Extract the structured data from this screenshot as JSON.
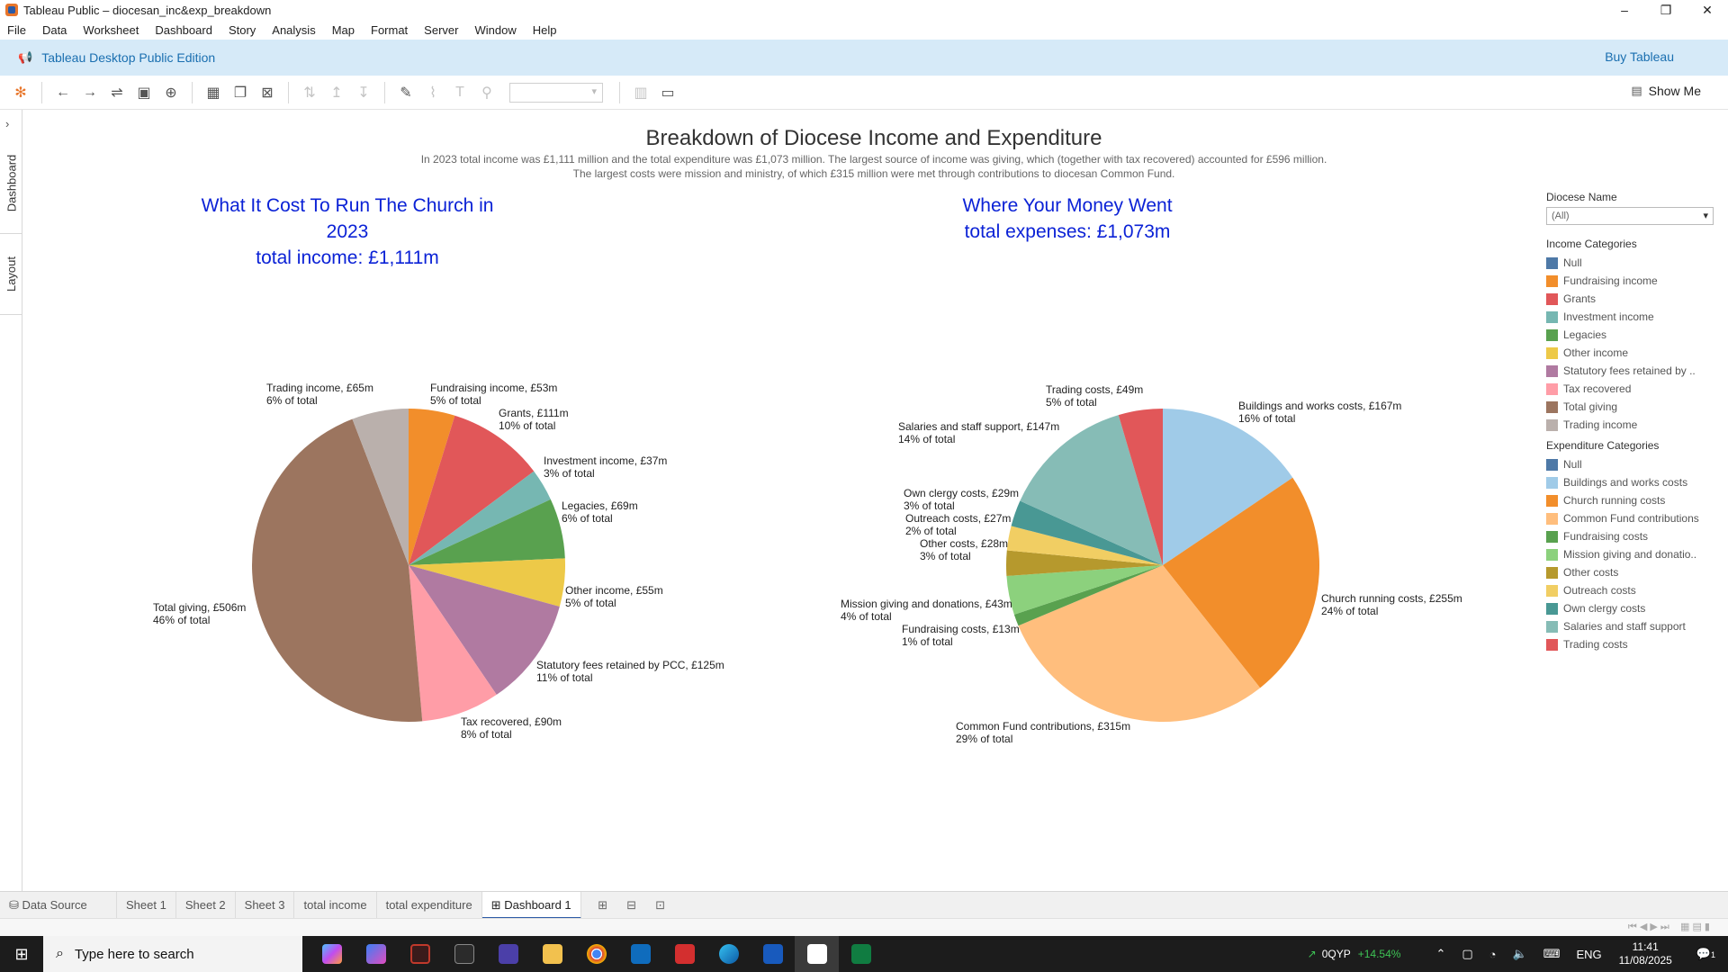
{
  "window": {
    "title": "Tableau Public – diocesan_inc&exp_breakdown",
    "controls": [
      "–",
      "❐",
      "✕"
    ]
  },
  "menu": [
    "File",
    "Data",
    "Worksheet",
    "Dashboard",
    "Story",
    "Analysis",
    "Map",
    "Format",
    "Server",
    "Window",
    "Help"
  ],
  "banner": {
    "edition": "Tableau Desktop Public Edition",
    "buy": "Buy Tableau"
  },
  "toolbar": {
    "show_me": "Show Me"
  },
  "side_tabs": [
    "Dashboard",
    "Layout"
  ],
  "dashboard": {
    "title": "Breakdown of Diocese Income and Expenditure",
    "subtitle_line1": "In 2023 total income was £1,111 million and the total expenditure was £1,073 million. The largest source of income was giving, which (together with tax recovered) accounted for £596 million.",
    "subtitle_line2": "The largest costs were mission and ministry, of which £315 million were met through contributions to diocesan Common Fund.",
    "left_title_1": "What It Cost To Run The Church in 2023",
    "left_title_2": "total income: £1,111m",
    "right_title_1": "Where Your Money Went",
    "right_title_2": "total expenses: £1,073m"
  },
  "chart_data": [
    {
      "type": "pie",
      "title": "What It Cost To Run The Church in 2023",
      "labels": [
        "Fundraising income",
        "Grants",
        "Investment income",
        "Legacies",
        "Other income",
        "Statutory fees retained by PCC",
        "Tax recovered",
        "Total giving",
        "Trading income"
      ],
      "values": [
        53,
        111,
        37,
        69,
        55,
        125,
        90,
        506,
        65
      ],
      "colors": [
        "#f28e2b",
        "#e15759",
        "#76b7b2",
        "#59a14f",
        "#edc948",
        "#b07aa1",
        "#ff9da7",
        "#9c755f",
        "#bab0ac"
      ],
      "label_line1": [
        "Fundraising income, £53m",
        "Grants, £111m",
        "Investment income, £37m",
        "Legacies, £69m",
        "Other income, £55m",
        "Statutory fees retained by PCC, £125m",
        "Tax recovered, £90m",
        "Total giving, £506m",
        "Trading income, £65m"
      ],
      "label_line2": [
        "5% of total",
        "10% of total",
        "3% of total",
        "6% of total",
        "5% of total",
        "11% of total",
        "8% of total",
        "46% of total",
        "6% of total"
      ]
    },
    {
      "type": "pie",
      "title": "Where Your Money Went",
      "labels": [
        "Buildings and works costs",
        "Church running costs",
        "Common Fund contributions",
        "Fundraising costs",
        "Mission giving and donations",
        "Other costs",
        "Outreach costs",
        "Own clergy costs",
        "Salaries and staff  support",
        "Trading costs"
      ],
      "values": [
        167,
        255,
        315,
        13,
        43,
        28,
        27,
        29,
        147,
        49
      ],
      "colors": [
        "#a0cbe8",
        "#f28e2b",
        "#ffbe7d",
        "#59a14f",
        "#8cd17d",
        "#b6992d",
        "#f1ce63",
        "#499894",
        "#86bcb6",
        "#e15759"
      ],
      "label_line1": [
        "Buildings and works costs, £167m",
        "Church running costs, £255m",
        "Common Fund contributions, £315m",
        "Fundraising costs, £13m",
        "Mission giving and donations, £43m",
        "Other costs, £28m",
        "Outreach costs, £27m",
        "Own clergy costs, £29m",
        "Salaries and staff  support, £147m",
        "Trading costs, £49m"
      ],
      "label_line2": [
        "16% of total",
        "24% of total",
        "29% of total",
        "1% of total",
        "4% of total",
        "3% of total",
        "2% of total",
        "3% of total",
        "14% of total",
        "5% of total"
      ]
    }
  ],
  "legend": {
    "filter_title": "Diocese Name",
    "filter_value": "(All)",
    "income_title": "Income Categories",
    "income": [
      {
        "label": "Null",
        "color": "#4e79a7"
      },
      {
        "label": "Fundraising income",
        "color": "#f28e2b"
      },
      {
        "label": "Grants",
        "color": "#e15759"
      },
      {
        "label": "Investment income",
        "color": "#76b7b2"
      },
      {
        "label": "Legacies",
        "color": "#59a14f"
      },
      {
        "label": "Other income",
        "color": "#edc948"
      },
      {
        "label": "Statutory fees retained by ..",
        "color": "#b07aa1"
      },
      {
        "label": "Tax recovered",
        "color": "#ff9da7"
      },
      {
        "label": "Total giving",
        "color": "#9c755f"
      },
      {
        "label": "Trading income",
        "color": "#bab0ac"
      }
    ],
    "expenditure_title": "Expenditure Categories",
    "expenditure": [
      {
        "label": "Null",
        "color": "#4e79a7"
      },
      {
        "label": "Buildings and works costs",
        "color": "#a0cbe8"
      },
      {
        "label": "Church running costs",
        "color": "#f28e2b"
      },
      {
        "label": "Common Fund contributions",
        "color": "#ffbe7d"
      },
      {
        "label": "Fundraising costs",
        "color": "#59a14f"
      },
      {
        "label": "Mission giving and donatio..",
        "color": "#8cd17d"
      },
      {
        "label": "Other costs",
        "color": "#b6992d"
      },
      {
        "label": "Outreach costs",
        "color": "#f1ce63"
      },
      {
        "label": "Own clergy costs",
        "color": "#499894"
      },
      {
        "label": "Salaries and staff  support",
        "color": "#86bcb6"
      },
      {
        "label": "Trading costs",
        "color": "#e15759"
      }
    ]
  },
  "sheet_tabs": {
    "data_source": "Data Source",
    "tabs": [
      "Sheet 1",
      "Sheet 2",
      "Sheet 3",
      "total income",
      "total expenditure"
    ],
    "active": "Dashboard 1"
  },
  "taskbar": {
    "search_placeholder": "Type here to search",
    "stock_name": "0QYP",
    "stock_change": "+14.54%",
    "language": "ENG",
    "time": "11:41",
    "date": "11/08/2025",
    "notifications": "1"
  }
}
